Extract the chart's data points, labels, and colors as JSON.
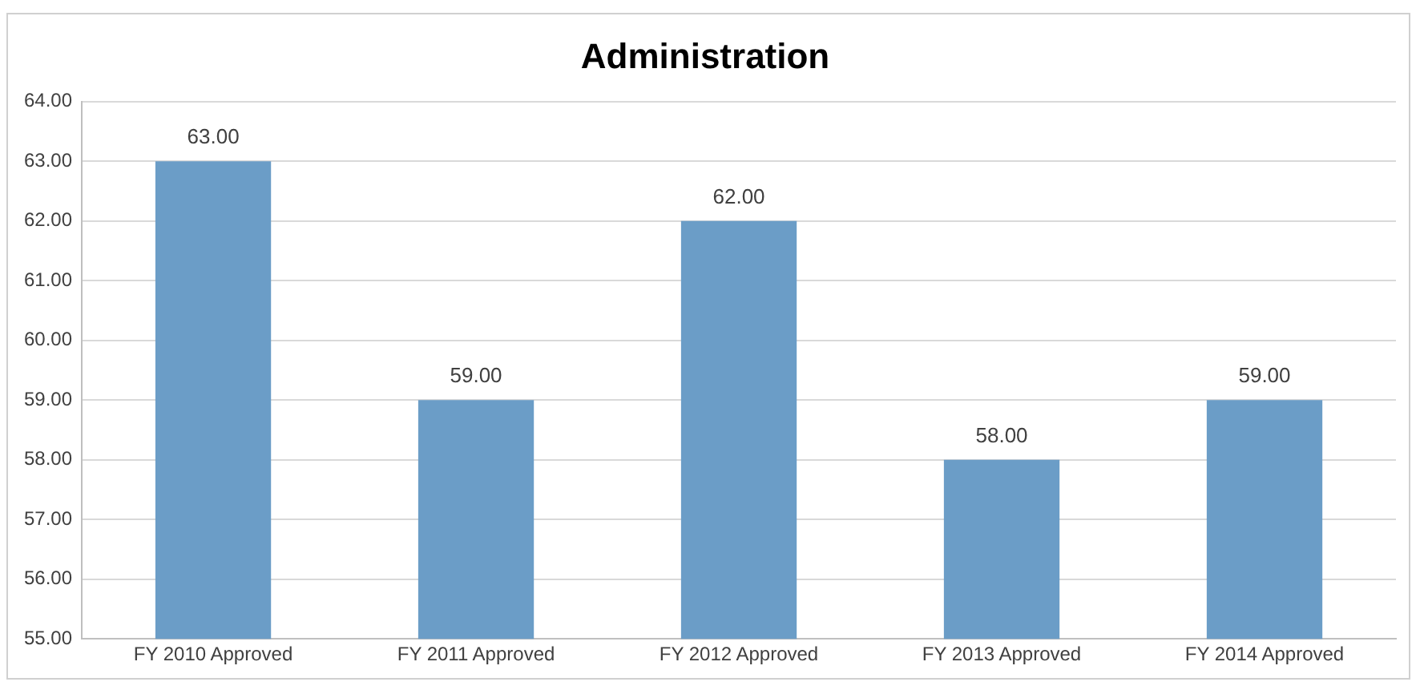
{
  "chart_data": {
    "type": "bar",
    "title": "Administration",
    "categories": [
      "FY 2010 Approved",
      "FY 2011 Approved",
      "FY 2012 Approved",
      "FY 2013 Approved",
      "FY 2014 Approved"
    ],
    "values": [
      63,
      59,
      62,
      58,
      59
    ],
    "value_labels": [
      "63.00",
      "59.00",
      "62.00",
      "58.00",
      "59.00"
    ],
    "color": "#6b9dc7",
    "ylim": [
      55,
      64
    ],
    "yticks": [
      {
        "value": 55,
        "label": "55.00"
      },
      {
        "value": 56,
        "label": "56.00"
      },
      {
        "value": 57,
        "label": "57.00"
      },
      {
        "value": 58,
        "label": "58.00"
      },
      {
        "value": 59,
        "label": "59.00"
      },
      {
        "value": 60,
        "label": "60.00"
      },
      {
        "value": 61,
        "label": "61.00"
      },
      {
        "value": 62,
        "label": "62.00"
      },
      {
        "value": 63,
        "label": "63.00"
      },
      {
        "value": 64,
        "label": "64.00"
      }
    ],
    "grid": "y",
    "legend": false
  }
}
